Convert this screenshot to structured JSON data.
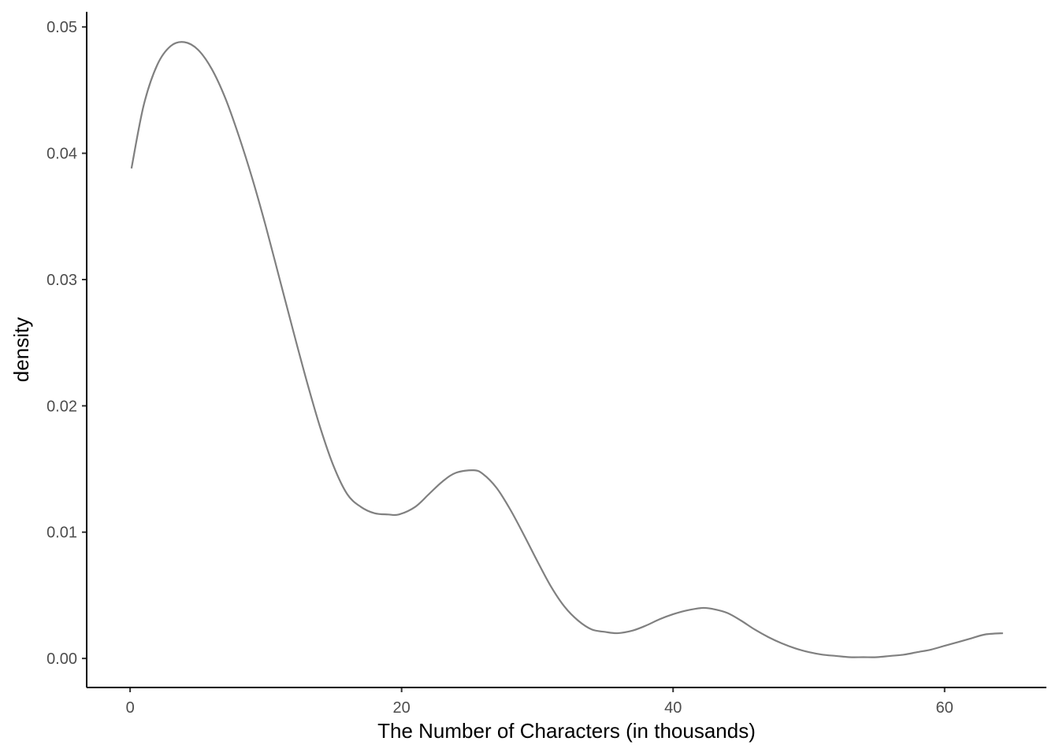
{
  "chart_data": {
    "type": "line",
    "title": "",
    "xlabel": "The Number of Characters (in thousands)",
    "ylabel": "density",
    "xlim": [
      -3.2,
      67.5
    ],
    "ylim": [
      -0.0023,
      0.0512
    ],
    "x_ticks": [
      0,
      20,
      40,
      60
    ],
    "y_ticks": [
      0.0,
      0.01,
      0.02,
      0.03,
      0.04,
      0.05
    ],
    "x_tick_labels": [
      "0",
      "20",
      "40",
      "60"
    ],
    "y_tick_labels": [
      "0.00",
      "0.01",
      "0.02",
      "0.03",
      "0.04",
      "0.05"
    ],
    "grid": false,
    "line_color": "#808080",
    "axis_color": "#000000",
    "series": [
      {
        "x": [
          0.1,
          1,
          2,
          3,
          4,
          5,
          6,
          7,
          8,
          9,
          10,
          11,
          12,
          13,
          14,
          15,
          16,
          17,
          18,
          19,
          19.8,
          21,
          22,
          23,
          24,
          25.3,
          26,
          27,
          28,
          29,
          30,
          31,
          32,
          33,
          34,
          35,
          35.9,
          37,
          38,
          39,
          40,
          41,
          42.2,
          43,
          44,
          45,
          46,
          47,
          48,
          49,
          50,
          51,
          52,
          53,
          54,
          55,
          56,
          57,
          58,
          59,
          60,
          61,
          62,
          63,
          64.3
        ],
        "y": [
          0.0388,
          0.0438,
          0.047,
          0.0485,
          0.0488,
          0.0482,
          0.0467,
          0.0444,
          0.0414,
          0.038,
          0.0342,
          0.0301,
          0.026,
          0.022,
          0.0183,
          0.0152,
          0.013,
          0.012,
          0.0115,
          0.0114,
          0.0114,
          0.012,
          0.013,
          0.014,
          0.0147,
          0.0149,
          0.0146,
          0.0135,
          0.0118,
          0.0098,
          0.0077,
          0.0057,
          0.0041,
          0.003,
          0.0023,
          0.0021,
          0.002,
          0.0022,
          0.0026,
          0.0031,
          0.0035,
          0.0038,
          0.004,
          0.0039,
          0.0036,
          0.003,
          0.0023,
          0.0017,
          0.0012,
          0.0008,
          0.0005,
          0.0003,
          0.0002,
          0.0001,
          0.0001,
          0.0001,
          0.0002,
          0.0003,
          0.0005,
          0.0007,
          0.001,
          0.0013,
          0.0016,
          0.0019,
          0.002
        ]
      }
    ]
  }
}
